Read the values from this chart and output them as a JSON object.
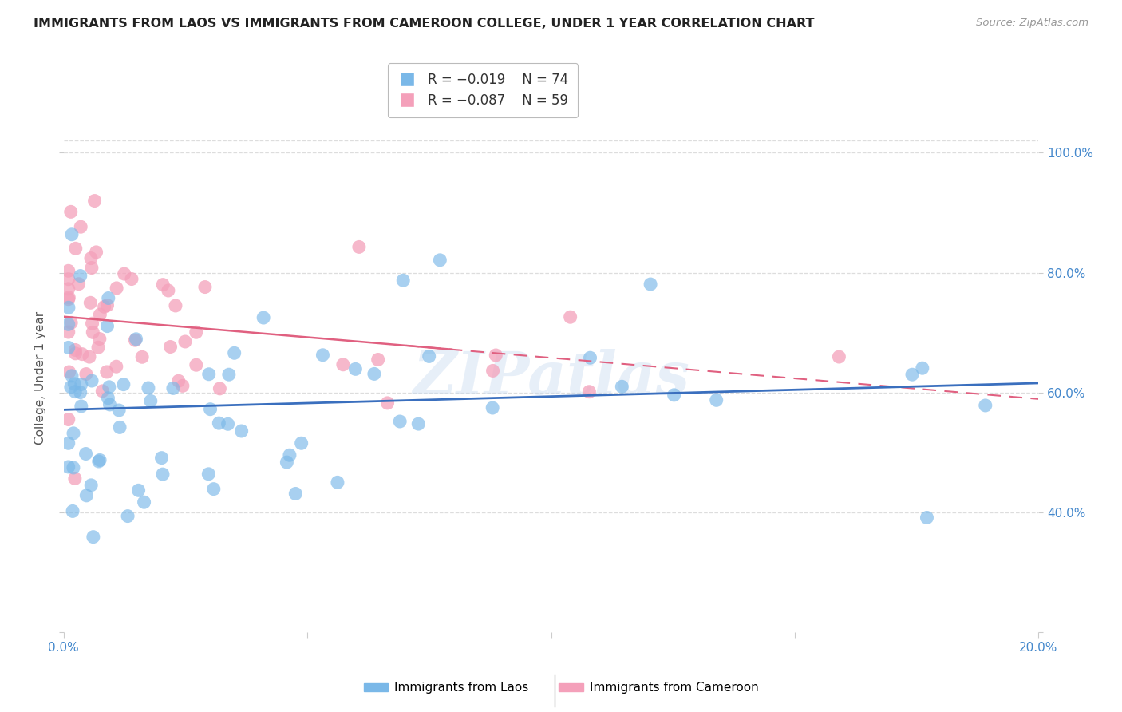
{
  "title": "IMMIGRANTS FROM LAOS VS IMMIGRANTS FROM CAMEROON COLLEGE, UNDER 1 YEAR CORRELATION CHART",
  "source": "Source: ZipAtlas.com",
  "ylabel": "College, Under 1 year",
  "x_min": 0.0,
  "x_max": 0.2,
  "y_min": 0.2,
  "y_max": 1.05,
  "x_ticks": [
    0.0,
    0.05,
    0.1,
    0.15,
    0.2
  ],
  "x_tick_labels": [
    "0.0%",
    "",
    "",
    "",
    "20.0%"
  ],
  "y_ticks": [
    0.2,
    0.4,
    0.6,
    0.8,
    1.0
  ],
  "y_tick_right_labels": [
    "",
    "40.0%",
    "60.0%",
    "80.0%",
    "100.0%"
  ],
  "laos_R": -0.019,
  "laos_N": 74,
  "cameroon_R": -0.087,
  "cameroon_N": 59,
  "laos_color": "#7ab8e8",
  "cameroon_color": "#f4a0ba",
  "laos_line_color": "#3a6fbe",
  "cameroon_line_color": "#e06080",
  "watermark": "ZIPatlas",
  "grid_color": "#dddddd",
  "background_color": "#ffffff",
  "title_fontsize": 11.5,
  "axis_label_fontsize": 11,
  "tick_fontsize": 11,
  "legend_fontsize": 12,
  "tick_color": "#4488cc",
  "source_color": "#999999",
  "title_color": "#222222"
}
